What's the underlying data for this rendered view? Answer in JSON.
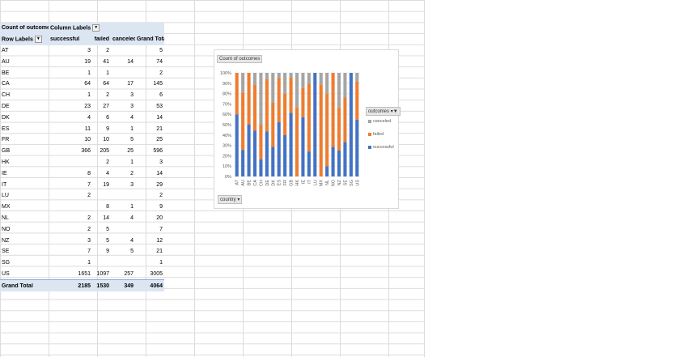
{
  "pivot": {
    "title": "Count of outcomes",
    "column_labels": "Column Labels",
    "row_labels": "Row Labels",
    "headers": [
      "successful",
      "failed",
      "canceled",
      "Grand Total"
    ],
    "rows": [
      {
        "label": "AT",
        "s": "3",
        "f": "2",
        "c": "",
        "t": "5"
      },
      {
        "label": "AU",
        "s": "19",
        "f": "41",
        "c": "14",
        "t": "74"
      },
      {
        "label": "BE",
        "s": "1",
        "f": "1",
        "c": "",
        "t": "2"
      },
      {
        "label": "CA",
        "s": "64",
        "f": "64",
        "c": "17",
        "t": "145"
      },
      {
        "label": "CH",
        "s": "1",
        "f": "2",
        "c": "3",
        "t": "6"
      },
      {
        "label": "DE",
        "s": "23",
        "f": "27",
        "c": "3",
        "t": "53"
      },
      {
        "label": "DK",
        "s": "4",
        "f": "6",
        "c": "4",
        "t": "14"
      },
      {
        "label": "ES",
        "s": "11",
        "f": "9",
        "c": "1",
        "t": "21"
      },
      {
        "label": "FR",
        "s": "10",
        "f": "10",
        "c": "5",
        "t": "25"
      },
      {
        "label": "GB",
        "s": "366",
        "f": "205",
        "c": "25",
        "t": "596"
      },
      {
        "label": "HK",
        "s": "",
        "f": "2",
        "c": "1",
        "t": "3"
      },
      {
        "label": "IE",
        "s": "8",
        "f": "4",
        "c": "2",
        "t": "14"
      },
      {
        "label": "IT",
        "s": "7",
        "f": "19",
        "c": "3",
        "t": "29"
      },
      {
        "label": "LU",
        "s": "2",
        "f": "",
        "c": "",
        "t": "2"
      },
      {
        "label": "MX",
        "s": "",
        "f": "8",
        "c": "1",
        "t": "9"
      },
      {
        "label": "NL",
        "s": "2",
        "f": "14",
        "c": "4",
        "t": "20"
      },
      {
        "label": "NO",
        "s": "2",
        "f": "5",
        "c": "",
        "t": "7"
      },
      {
        "label": "NZ",
        "s": "3",
        "f": "5",
        "c": "4",
        "t": "12"
      },
      {
        "label": "SE",
        "s": "7",
        "f": "9",
        "c": "5",
        "t": "21"
      },
      {
        "label": "SG",
        "s": "1",
        "f": "",
        "c": "",
        "t": "1"
      },
      {
        "label": "US",
        "s": "1651",
        "f": "1097",
        "c": "257",
        "t": "3005"
      }
    ],
    "grand_total": {
      "label": "Grand Total",
      "s": "2185",
      "f": "1530",
      "c": "349",
      "t": "4064"
    }
  },
  "chart": {
    "title_chip": "Count of outcomes",
    "legend_chip": "outcomes",
    "axis_chip": "country",
    "legend": [
      {
        "name": "canceled",
        "color": "#a5a5a5"
      },
      {
        "name": "failed",
        "color": "#ed7d31"
      },
      {
        "name": "successful",
        "color": "#4472c4"
      }
    ]
  },
  "chart_data": {
    "type": "bar",
    "stacked": "100%",
    "categories": [
      "AT",
      "AU",
      "BE",
      "CA",
      "CH",
      "DE",
      "DK",
      "ES",
      "FR",
      "GB",
      "HK",
      "IE",
      "IT",
      "LU",
      "MX",
      "NL",
      "NO",
      "NZ",
      "SE",
      "SG",
      "US"
    ],
    "series": [
      {
        "name": "successful",
        "color": "#4472c4",
        "values": [
          3,
          19,
          1,
          64,
          1,
          23,
          4,
          11,
          10,
          366,
          0,
          8,
          7,
          2,
          0,
          2,
          2,
          3,
          7,
          1,
          1651
        ]
      },
      {
        "name": "failed",
        "color": "#ed7d31",
        "values": [
          2,
          41,
          1,
          64,
          2,
          27,
          6,
          9,
          10,
          205,
          2,
          4,
          19,
          0,
          8,
          14,
          5,
          5,
          9,
          0,
          1097
        ]
      },
      {
        "name": "canceled",
        "color": "#a5a5a5",
        "values": [
          0,
          14,
          0,
          17,
          3,
          3,
          4,
          1,
          5,
          25,
          1,
          2,
          3,
          0,
          1,
          4,
          0,
          4,
          5,
          0,
          257
        ]
      }
    ],
    "y_ticks": [
      "0%",
      "10%",
      "20%",
      "30%",
      "40%",
      "50%",
      "60%",
      "70%",
      "80%",
      "90%",
      "100%"
    ],
    "ylim": [
      0,
      100
    ],
    "legend_position": "right"
  }
}
